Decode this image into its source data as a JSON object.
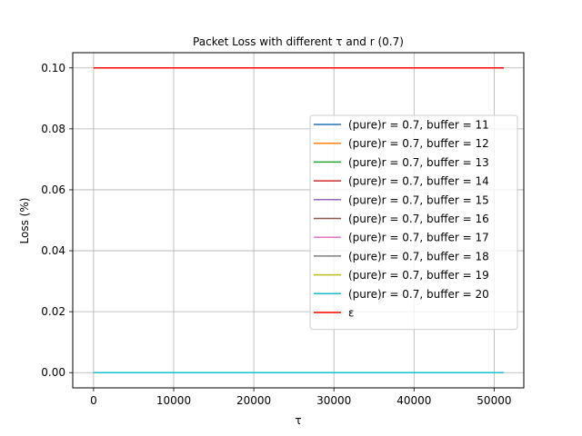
{
  "chart_data": {
    "type": "line",
    "title": "Packet Loss with different τ and r (0.7)",
    "xlabel": "τ",
    "ylabel": "Loss (%)",
    "xlim": [
      -2600,
      53700
    ],
    "ylim": [
      -0.005,
      0.105
    ],
    "xticks": [
      0,
      10000,
      20000,
      30000,
      40000,
      50000
    ],
    "yticks": [
      0.0,
      0.02,
      0.04,
      0.06,
      0.08,
      0.1
    ],
    "xtick_labels": [
      "0",
      "10000",
      "20000",
      "30000",
      "40000",
      "50000"
    ],
    "ytick_labels": [
      "0.00",
      "0.02",
      "0.04",
      "0.06",
      "0.08",
      "0.10"
    ],
    "grid": true,
    "legend_position": "center-right",
    "series": [
      {
        "name": "(pure)r = 0.7, buffer = 11",
        "color": "#1f77b4",
        "x": [
          0,
          51200
        ],
        "y": [
          0,
          0
        ]
      },
      {
        "name": "(pure)r = 0.7, buffer = 12",
        "color": "#ff7f0e",
        "x": [
          0,
          51200
        ],
        "y": [
          0,
          0
        ]
      },
      {
        "name": "(pure)r = 0.7, buffer = 13",
        "color": "#2ca02c",
        "x": [
          0,
          51200
        ],
        "y": [
          0,
          0
        ]
      },
      {
        "name": "(pure)r = 0.7, buffer = 14",
        "color": "#d62728",
        "x": [
          0,
          51200
        ],
        "y": [
          0,
          0
        ]
      },
      {
        "name": "(pure)r = 0.7, buffer = 15",
        "color": "#9467bd",
        "x": [
          0,
          51200
        ],
        "y": [
          0,
          0
        ]
      },
      {
        "name": "(pure)r = 0.7, buffer = 16",
        "color": "#8c564b",
        "x": [
          0,
          51200
        ],
        "y": [
          0,
          0
        ]
      },
      {
        "name": "(pure)r = 0.7, buffer = 17",
        "color": "#e377c2",
        "x": [
          0,
          51200
        ],
        "y": [
          0,
          0
        ]
      },
      {
        "name": "(pure)r = 0.7, buffer = 18",
        "color": "#7f7f7f",
        "x": [
          0,
          51200
        ],
        "y": [
          0,
          0
        ]
      },
      {
        "name": "(pure)r = 0.7, buffer = 19",
        "color": "#bcbd22",
        "x": [
          0,
          51200
        ],
        "y": [
          0,
          0
        ]
      },
      {
        "name": "(pure)r = 0.7, buffer = 20",
        "color": "#17becf",
        "x": [
          0,
          51200
        ],
        "y": [
          0,
          0
        ]
      },
      {
        "name": "ε",
        "color": "#ff0000",
        "x": [
          0,
          51200
        ],
        "y": [
          0.1,
          0.1
        ]
      }
    ]
  }
}
